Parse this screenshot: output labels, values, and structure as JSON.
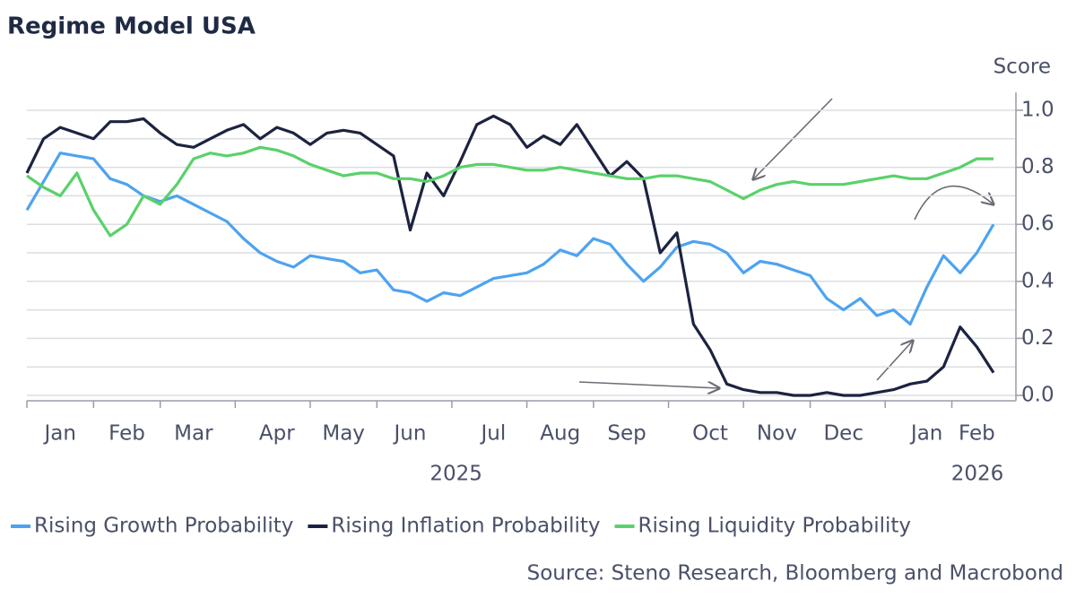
{
  "chart_data": {
    "type": "line",
    "title": "Regime Model USA",
    "y_axis_label": "Score",
    "source": "Source: Steno Research, Bloomberg and Macrobond",
    "categories": [
      null,
      null,
      "Jan",
      null,
      null,
      null,
      "Feb",
      null,
      null,
      null,
      "Mar",
      null,
      null,
      null,
      null,
      "Apr",
      null,
      null,
      null,
      "May",
      null,
      null,
      null,
      "Jun",
      null,
      null,
      null,
      null,
      "Jul",
      null,
      null,
      null,
      "Aug",
      null,
      null,
      null,
      "Sep",
      null,
      null,
      null,
      null,
      "Oct",
      null,
      null,
      null,
      "Nov",
      null,
      null,
      null,
      "Dec",
      null,
      null,
      null,
      null,
      "Jan",
      null,
      null,
      "Feb",
      null
    ],
    "x_group_labels": [
      "2025",
      "2026"
    ],
    "ylim": [
      0,
      1.05
    ],
    "yticks": [
      {
        "value": 0,
        "label": "0.0"
      },
      0.2,
      0.4,
      0.6,
      0.8,
      {
        "value": 1,
        "label": "1.0"
      }
    ],
    "minor_yticks": [
      0.1,
      0.3,
      0.5,
      0.7,
      0.9
    ],
    "grid": true,
    "series": [
      {
        "name": "Rising Growth Probability",
        "color": "#4da3f0",
        "values": [
          0.65,
          0.75,
          0.85,
          0.84,
          0.83,
          0.76,
          0.74,
          0.7,
          0.68,
          0.7,
          0.67,
          0.64,
          0.61,
          0.55,
          0.5,
          0.47,
          0.45,
          0.49,
          0.48,
          0.47,
          0.43,
          0.44,
          0.37,
          0.36,
          0.33,
          0.36,
          0.35,
          0.38,
          0.41,
          0.42,
          0.43,
          0.46,
          0.51,
          0.49,
          0.55,
          0.53,
          0.46,
          0.4,
          0.45,
          0.52,
          0.54,
          0.53,
          0.5,
          0.43,
          0.47,
          0.46,
          0.44,
          0.42,
          0.34,
          0.3,
          0.34,
          0.28,
          0.3,
          0.25,
          0.38,
          0.49,
          0.43,
          0.5,
          0.6
        ]
      },
      {
        "name": "Rising Inflation Probability",
        "color": "#1c2340",
        "values": [
          0.78,
          0.9,
          0.94,
          0.92,
          0.9,
          0.96,
          0.96,
          0.97,
          0.92,
          0.88,
          0.87,
          0.9,
          0.93,
          0.95,
          0.9,
          0.94,
          0.92,
          0.88,
          0.92,
          0.93,
          0.92,
          0.88,
          0.84,
          0.58,
          0.78,
          0.7,
          0.82,
          0.95,
          0.98,
          0.95,
          0.87,
          0.91,
          0.88,
          0.95,
          0.86,
          0.77,
          0.82,
          0.76,
          0.5,
          0.57,
          0.25,
          0.16,
          0.04,
          0.02,
          0.01,
          0.01,
          0.0,
          0.0,
          0.01,
          0.0,
          0.0,
          0.01,
          0.02,
          0.04,
          0.05,
          0.1,
          0.24,
          0.17,
          0.08
        ]
      },
      {
        "name": "Rising Liquidity Probability",
        "color": "#5ad16a",
        "values": [
          0.77,
          0.73,
          0.7,
          0.78,
          0.65,
          0.56,
          0.6,
          0.7,
          0.67,
          0.74,
          0.83,
          0.85,
          0.84,
          0.85,
          0.87,
          0.86,
          0.84,
          0.81,
          0.79,
          0.77,
          0.78,
          0.78,
          0.76,
          0.76,
          0.75,
          0.77,
          0.8,
          0.81,
          0.81,
          0.8,
          0.79,
          0.79,
          0.8,
          0.79,
          0.78,
          0.77,
          0.76,
          0.76,
          0.77,
          0.77,
          0.76,
          0.75,
          0.72,
          0.69,
          0.72,
          0.74,
          0.75,
          0.74,
          0.74,
          0.74,
          0.75,
          0.76,
          0.77,
          0.76,
          0.76,
          0.78,
          0.8,
          0.83,
          0.83
        ]
      }
    ]
  }
}
